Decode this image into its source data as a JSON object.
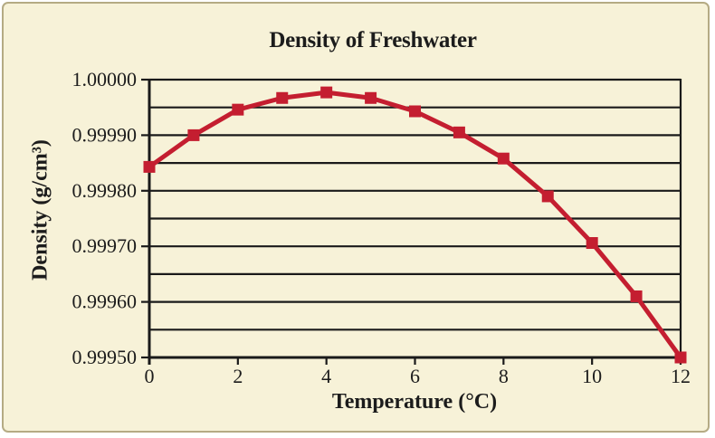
{
  "figure": {
    "background_color": "#f7f2d8",
    "border_color": "#b5ab84"
  },
  "chart_data": {
    "type": "line",
    "title": "Density of Freshwater",
    "xlabel": "Temperature (°C)",
    "ylabel": "Density (g/cm³)",
    "x": [
      0,
      1,
      2,
      3,
      4,
      5,
      6,
      7,
      8,
      9,
      10,
      11,
      12
    ],
    "series": [
      {
        "name": "Density of freshwater",
        "values": [
          0.999843,
          0.9999,
          0.999946,
          0.999967,
          0.999977,
          0.999967,
          0.999943,
          0.999905,
          0.999858,
          0.99979,
          0.999706,
          0.99961,
          0.9995
        ]
      }
    ],
    "xlim": [
      0,
      12
    ],
    "ylim": [
      0.9995,
      1.0
    ],
    "x_ticks": [
      0,
      2,
      4,
      6,
      8,
      10,
      12
    ],
    "x_tick_labels": [
      "0",
      "2",
      "4",
      "6",
      "8",
      "10",
      "12"
    ],
    "y_tick_values": [
      1.0,
      0.9999,
      0.9998,
      0.9997,
      0.9996,
      0.9995
    ],
    "y_tick_labels": [
      "1.00000",
      "0.99990",
      "0.99980",
      "0.99970",
      "0.99960",
      "0.99950"
    ],
    "y_gridline_step": 5e-05,
    "grid": "horizontal-only",
    "legend_position": "none",
    "line_color": "#c41e30",
    "marker": "square",
    "axis_color": "#1a1a1a"
  }
}
